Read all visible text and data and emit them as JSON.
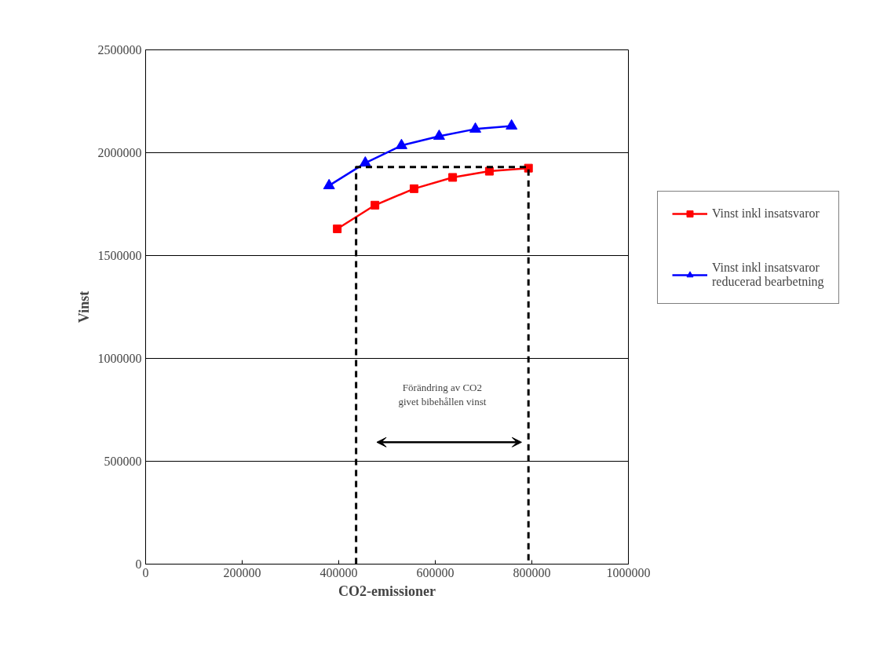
{
  "chart_data": {
    "type": "line",
    "xlabel": "CO2-emissioner",
    "ylabel": "Vinst",
    "xlim": [
      0,
      1000000
    ],
    "xticks": [
      0,
      200000,
      400000,
      600000,
      800000,
      1000000
    ],
    "ylim": [
      0,
      2500000
    ],
    "yticks": [
      0,
      500000,
      1000000,
      1500000,
      2000000,
      2500000
    ],
    "grid": "y",
    "legend": "right",
    "series": [
      {
        "name": "Vinst inkl insatsvaror",
        "color": "#ff0000",
        "marker": "square",
        "x": [
          397000,
          475000,
          556000,
          636000,
          712000,
          793000
        ],
        "values": [
          1630000,
          1745000,
          1825000,
          1880000,
          1910000,
          1925000
        ]
      },
      {
        "name": "Vinst inkl insatsvaror reducerad bearbetning",
        "color": "#0000ff",
        "marker": "triangle",
        "x": [
          380000,
          455000,
          530000,
          608000,
          683000,
          758000
        ],
        "values": [
          1840000,
          1950000,
          2035000,
          2080000,
          2115000,
          2130000
        ]
      },
      {
        "color": "#000000",
        "marker": "none",
        "line_style": "dashed",
        "x": [
          436000,
          436000,
          793000,
          793000
        ],
        "values": [
          0,
          1930000,
          1930000,
          0
        ]
      }
    ],
    "annotations": [
      "Förändring av CO2\ngivet bibehållen vinst"
    ]
  }
}
